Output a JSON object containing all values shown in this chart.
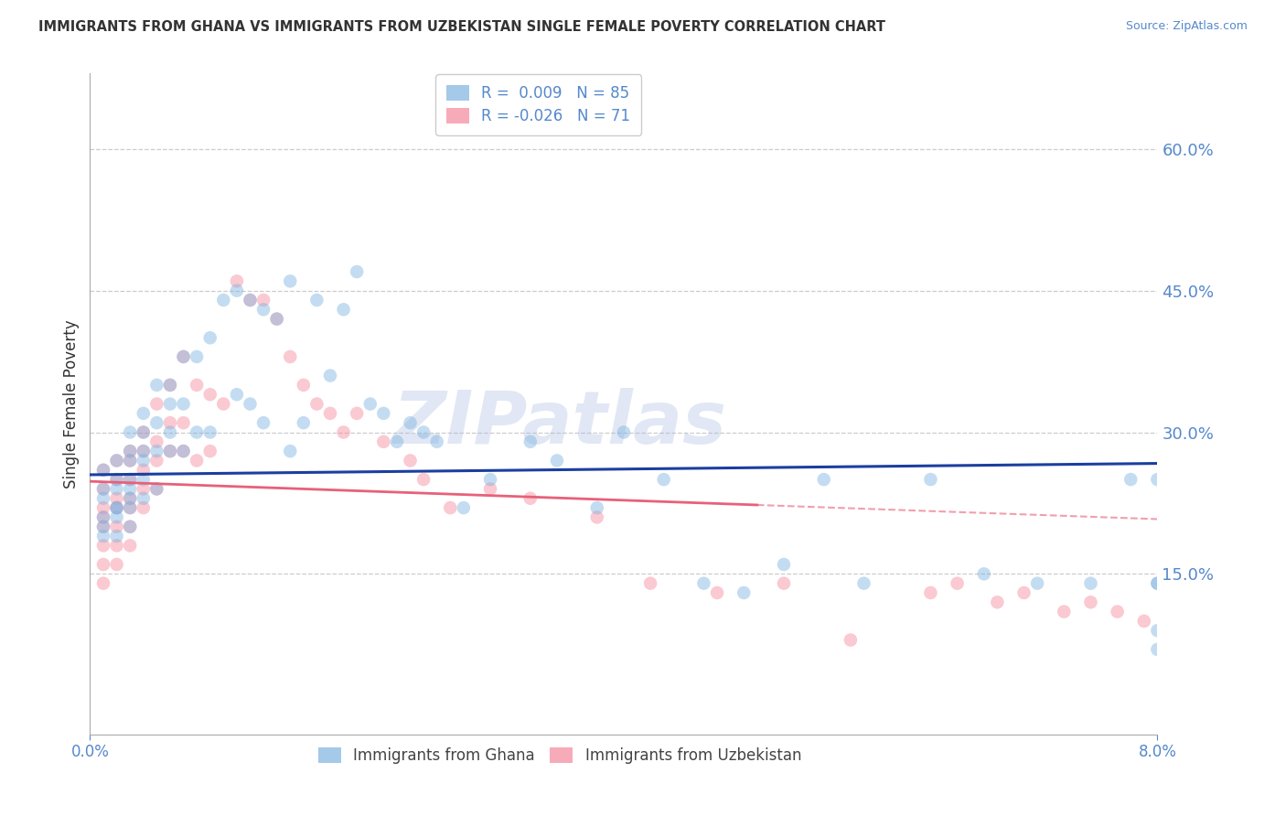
{
  "title": "IMMIGRANTS FROM GHANA VS IMMIGRANTS FROM UZBEKISTAN SINGLE FEMALE POVERTY CORRELATION CHART",
  "source": "Source: ZipAtlas.com",
  "ylabel": "Single Female Poverty",
  "ytick_values": [
    0.6,
    0.45,
    0.3,
    0.15
  ],
  "xlim": [
    0.0,
    0.08
  ],
  "ylim": [
    -0.02,
    0.68
  ],
  "ghana_R": 0.009,
  "ghana_N": 85,
  "uzbekistan_R": -0.026,
  "uzbekistan_N": 71,
  "ghana_color": "#7EB3E0",
  "uzbekistan_color": "#F4889A",
  "ghana_line_color": "#1B3FA0",
  "uzbekistan_line_color": "#E8607A",
  "axis_color": "#5588CC",
  "watermark": "ZIPatlas",
  "ghana_x": [
    0.001,
    0.001,
    0.001,
    0.001,
    0.001,
    0.001,
    0.002,
    0.002,
    0.002,
    0.002,
    0.002,
    0.002,
    0.002,
    0.003,
    0.003,
    0.003,
    0.003,
    0.003,
    0.003,
    0.003,
    0.003,
    0.004,
    0.004,
    0.004,
    0.004,
    0.004,
    0.004,
    0.005,
    0.005,
    0.005,
    0.005,
    0.006,
    0.006,
    0.006,
    0.006,
    0.007,
    0.007,
    0.007,
    0.008,
    0.008,
    0.009,
    0.009,
    0.01,
    0.011,
    0.011,
    0.012,
    0.012,
    0.013,
    0.013,
    0.014,
    0.015,
    0.015,
    0.016,
    0.017,
    0.018,
    0.019,
    0.02,
    0.021,
    0.022,
    0.023,
    0.024,
    0.025,
    0.026,
    0.028,
    0.03,
    0.033,
    0.035,
    0.038,
    0.04,
    0.043,
    0.046,
    0.049,
    0.052,
    0.055,
    0.058,
    0.063,
    0.067,
    0.071,
    0.075,
    0.078,
    0.08,
    0.08,
    0.08,
    0.08,
    0.08
  ],
  "ghana_y": [
    0.24,
    0.26,
    0.23,
    0.21,
    0.2,
    0.19,
    0.27,
    0.25,
    0.24,
    0.22,
    0.22,
    0.21,
    0.19,
    0.3,
    0.28,
    0.27,
    0.25,
    0.24,
    0.23,
    0.22,
    0.2,
    0.32,
    0.3,
    0.28,
    0.27,
    0.25,
    0.23,
    0.35,
    0.31,
    0.28,
    0.24,
    0.35,
    0.33,
    0.3,
    0.28,
    0.38,
    0.33,
    0.28,
    0.38,
    0.3,
    0.4,
    0.3,
    0.44,
    0.45,
    0.34,
    0.44,
    0.33,
    0.43,
    0.31,
    0.42,
    0.46,
    0.28,
    0.31,
    0.44,
    0.36,
    0.43,
    0.47,
    0.33,
    0.32,
    0.29,
    0.31,
    0.3,
    0.29,
    0.22,
    0.25,
    0.29,
    0.27,
    0.22,
    0.3,
    0.25,
    0.14,
    0.13,
    0.16,
    0.25,
    0.14,
    0.25,
    0.15,
    0.14,
    0.14,
    0.25,
    0.07,
    0.09,
    0.25,
    0.14,
    0.14
  ],
  "uzbekistan_x": [
    0.001,
    0.001,
    0.001,
    0.001,
    0.001,
    0.001,
    0.001,
    0.001,
    0.002,
    0.002,
    0.002,
    0.002,
    0.002,
    0.002,
    0.002,
    0.003,
    0.003,
    0.003,
    0.003,
    0.003,
    0.003,
    0.003,
    0.004,
    0.004,
    0.004,
    0.004,
    0.004,
    0.005,
    0.005,
    0.005,
    0.005,
    0.006,
    0.006,
    0.006,
    0.007,
    0.007,
    0.007,
    0.008,
    0.008,
    0.009,
    0.009,
    0.01,
    0.011,
    0.012,
    0.013,
    0.014,
    0.015,
    0.016,
    0.017,
    0.018,
    0.019,
    0.02,
    0.022,
    0.024,
    0.025,
    0.027,
    0.03,
    0.033,
    0.038,
    0.042,
    0.047,
    0.052,
    0.057,
    0.063,
    0.065,
    0.068,
    0.07,
    0.073,
    0.075,
    0.077,
    0.079
  ],
  "uzbekistan_y": [
    0.26,
    0.24,
    0.22,
    0.21,
    0.2,
    0.18,
    0.16,
    0.14,
    0.27,
    0.25,
    0.23,
    0.22,
    0.2,
    0.18,
    0.16,
    0.28,
    0.27,
    0.25,
    0.23,
    0.22,
    0.2,
    0.18,
    0.3,
    0.28,
    0.26,
    0.24,
    0.22,
    0.33,
    0.29,
    0.27,
    0.24,
    0.35,
    0.31,
    0.28,
    0.38,
    0.31,
    0.28,
    0.35,
    0.27,
    0.34,
    0.28,
    0.33,
    0.46,
    0.44,
    0.44,
    0.42,
    0.38,
    0.35,
    0.33,
    0.32,
    0.3,
    0.32,
    0.29,
    0.27,
    0.25,
    0.22,
    0.24,
    0.23,
    0.21,
    0.14,
    0.13,
    0.14,
    0.08,
    0.13,
    0.14,
    0.12,
    0.13,
    0.11,
    0.12,
    0.11,
    0.1
  ],
  "background_color": "#FFFFFF",
  "grid_color": "#CCCCCC",
  "title_color": "#333333",
  "marker_size": 110,
  "marker_alpha": 0.45
}
